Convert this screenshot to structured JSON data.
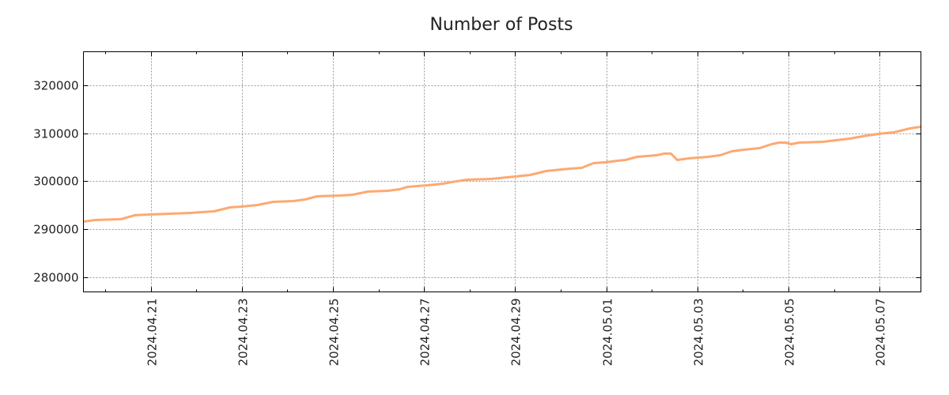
{
  "chart_data": {
    "type": "line",
    "title": "Number of Posts",
    "xlabel": "",
    "ylabel": "",
    "x_unit": "days since 2024-04-21 00:00",
    "xlim": [
      -1.48,
      16.91
    ],
    "ylim": [
      276860,
      327100
    ],
    "grid": true,
    "line_color": "#FCA972",
    "x_ticks": [
      {
        "value": 0,
        "label": "2024.04.21"
      },
      {
        "value": 2,
        "label": "2024.04.23"
      },
      {
        "value": 4,
        "label": "2024.04.25"
      },
      {
        "value": 6,
        "label": "2024.04.27"
      },
      {
        "value": 8,
        "label": "2024.04.29"
      },
      {
        "value": 10,
        "label": "2024.05.01"
      },
      {
        "value": 12,
        "label": "2024.05.03"
      },
      {
        "value": 14,
        "label": "2024.05.05"
      },
      {
        "value": 16,
        "label": "2024.05.07"
      }
    ],
    "y_ticks": [
      {
        "value": 280000,
        "label": "280000"
      },
      {
        "value": 290000,
        "label": "290000"
      },
      {
        "value": 300000,
        "label": "300000"
      },
      {
        "value": 310000,
        "label": "310000"
      },
      {
        "value": 320000,
        "label": "320000"
      }
    ],
    "series": [
      {
        "name": "Number of Posts",
        "x": [
          -1.48,
          -1.22,
          -0.66,
          -0.35,
          0,
          0.87,
          1.39,
          1.74,
          2.0,
          2.34,
          2.69,
          3.13,
          3.39,
          3.65,
          4.17,
          4.43,
          4.77,
          5.21,
          5.47,
          5.64,
          6.08,
          6.42,
          6.6,
          6.94,
          7.47,
          7.99,
          8.33,
          8.68,
          9.2,
          9.46,
          9.72,
          9.98,
          10.24,
          10.42,
          10.68,
          11.11,
          11.28,
          11.42,
          11.56,
          11.81,
          12.24,
          12.5,
          12.76,
          13.02,
          13.37,
          13.63,
          13.8,
          13.94,
          14.06,
          14.24,
          14.76,
          15.36,
          15.63,
          15.97,
          16.32,
          16.67,
          16.91
        ],
        "y": [
          291570,
          291900,
          292070,
          292900,
          293060,
          293390,
          293720,
          294550,
          294710,
          295040,
          295700,
          295870,
          296200,
          296860,
          297020,
          297190,
          297850,
          298020,
          298350,
          298840,
          299170,
          299500,
          299830,
          300330,
          300500,
          300990,
          301320,
          302150,
          302640,
          302810,
          303800,
          303970,
          304300,
          304460,
          305120,
          305450,
          305790,
          305790,
          304460,
          304790,
          305120,
          305450,
          306280,
          306610,
          306940,
          307770,
          308100,
          308100,
          307770,
          308100,
          308260,
          308930,
          309420,
          309920,
          310250,
          311070,
          311400
        ]
      }
    ]
  }
}
